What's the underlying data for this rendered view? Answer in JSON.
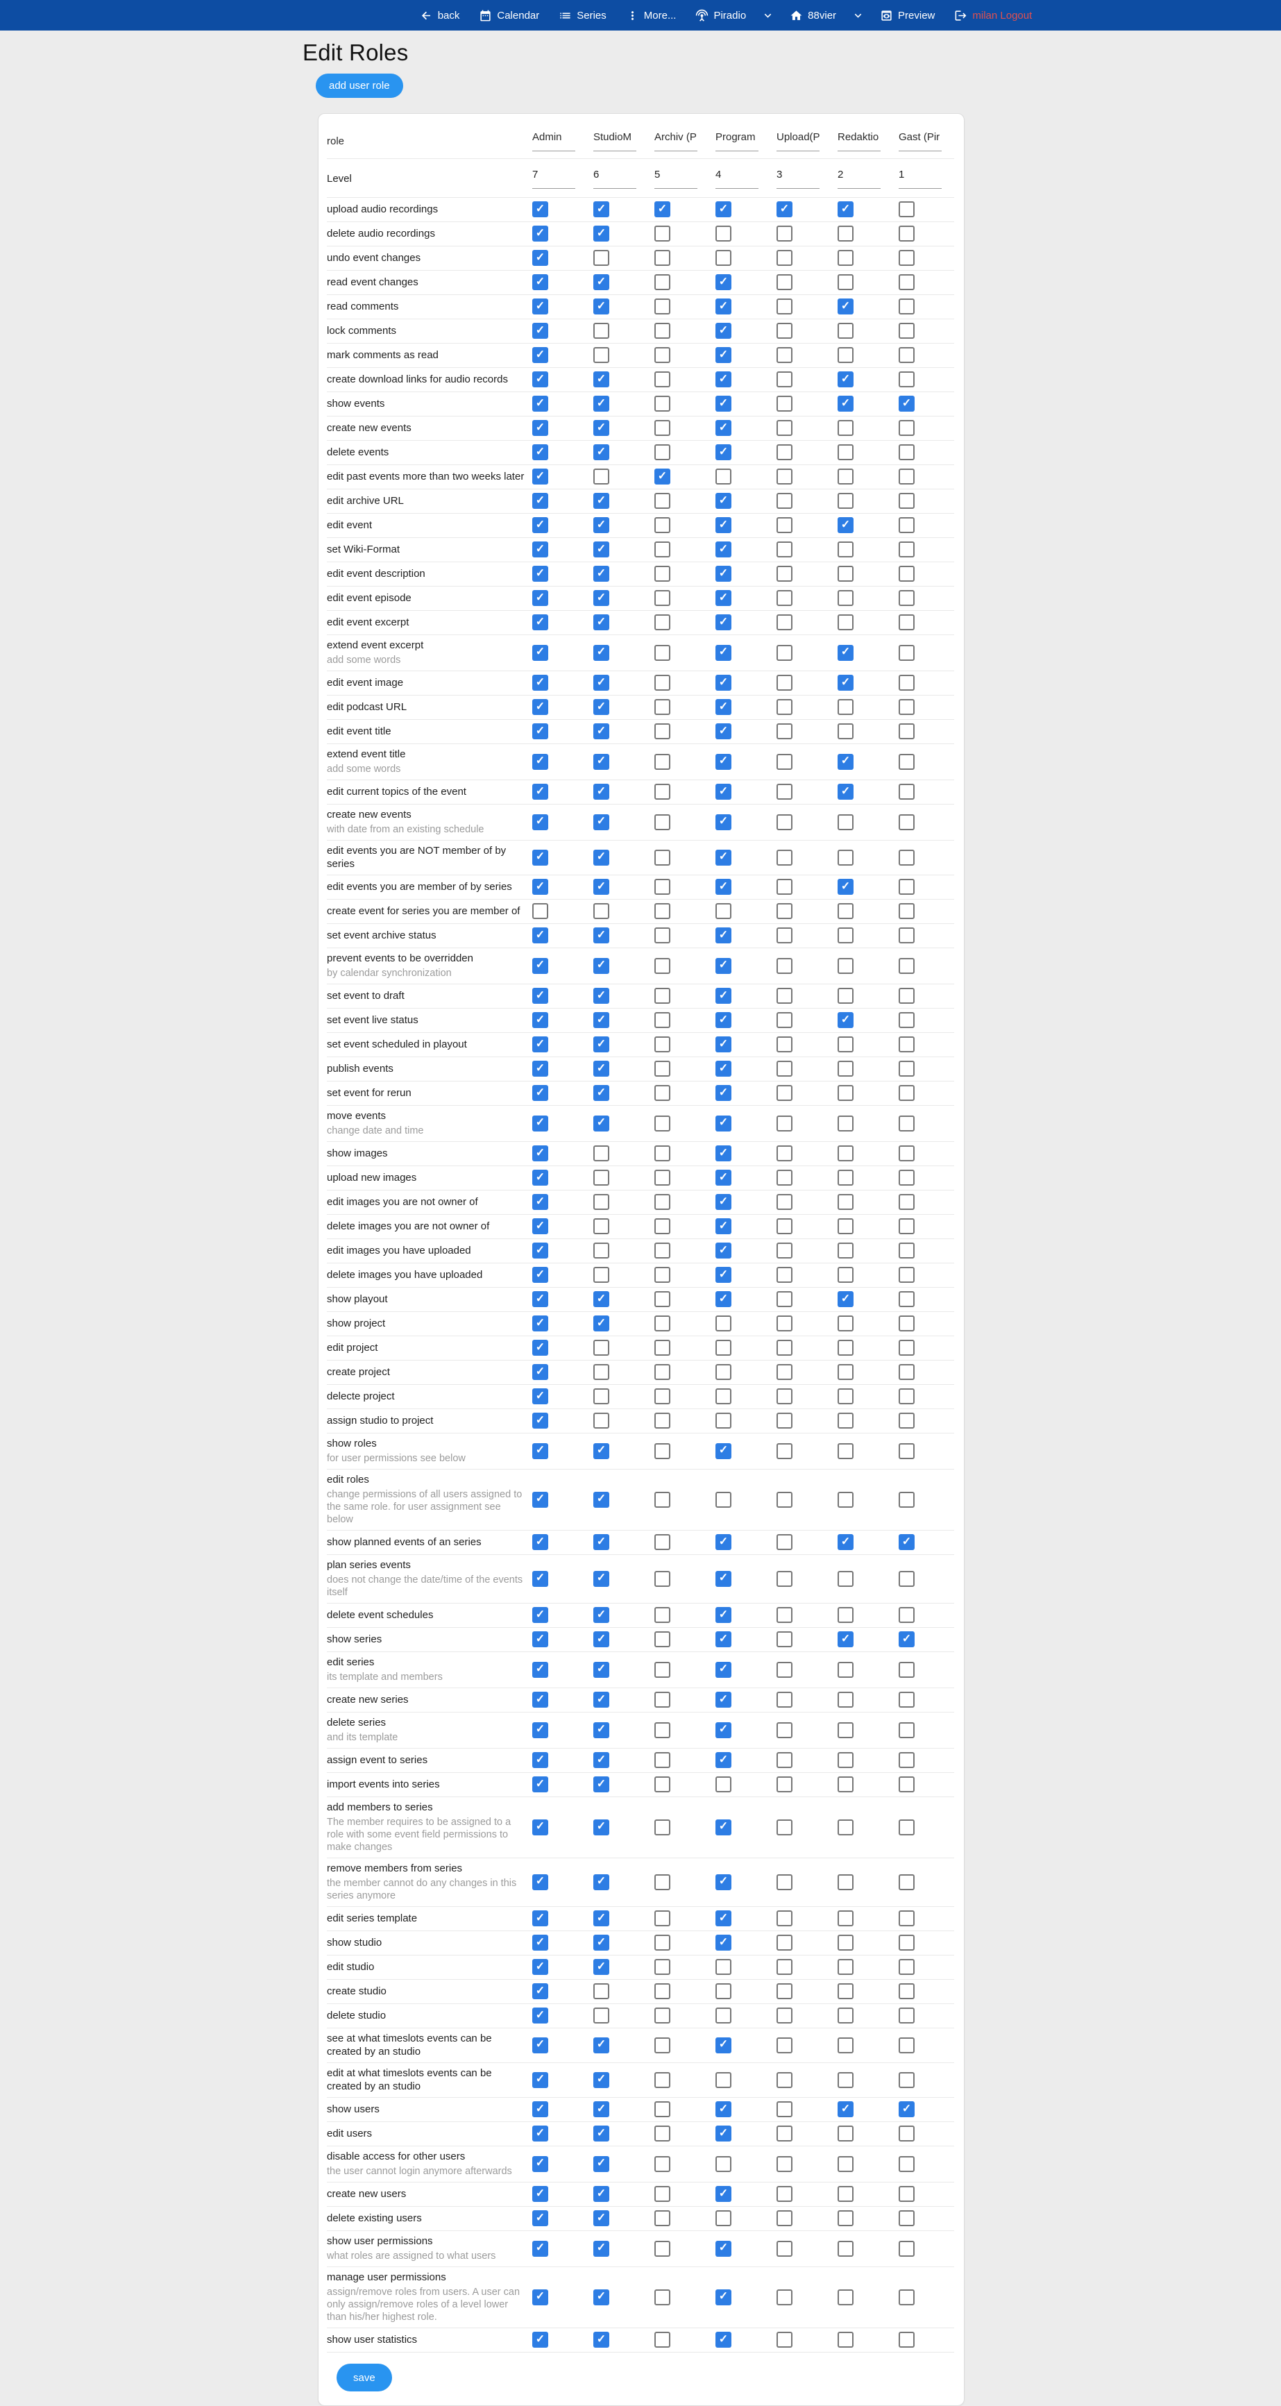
{
  "colors": {
    "navbar_bg": "#0d4da3",
    "accent_button": "#2994f0",
    "checkbox_checked": "#2d7de4",
    "logout_text": "#e05050",
    "page_bg": "#ececec",
    "card_border": "#dcdcdc",
    "row_divider": "#e9e9e9",
    "sublabel_text": "#9b9b9b",
    "unchecked_border": "#767676"
  },
  "navbar": {
    "items": [
      {
        "icon": "back-arrow-icon",
        "label": "back"
      },
      {
        "icon": "calendar-icon",
        "label": "Calendar"
      },
      {
        "icon": "series-list-icon",
        "label": "Series"
      },
      {
        "icon": "more-vert-icon",
        "label": "More..."
      },
      {
        "icon": "antenna-icon",
        "label": "Piradio"
      },
      {
        "icon": "chevron-down-icon",
        "label": ""
      },
      {
        "icon": "home-icon",
        "label": "88vier"
      },
      {
        "icon": "chevron-down-icon",
        "label": ""
      },
      {
        "icon": "preview-icon",
        "label": "Preview"
      },
      {
        "icon": "logout-icon",
        "label": "milan Logout",
        "style": "logout"
      }
    ]
  },
  "page": {
    "title": "Edit Roles",
    "add_button_label": "add user role",
    "save_button_label": "save"
  },
  "table": {
    "role_header": "role",
    "level_label": "Level",
    "columns": [
      {
        "name": "Admin",
        "level": "7"
      },
      {
        "name": "StudioM",
        "level": "6"
      },
      {
        "name": "Archiv (P",
        "level": "5"
      },
      {
        "name": "Program",
        "level": "4"
      },
      {
        "name": "Upload(P",
        "level": "3"
      },
      {
        "name": "Redaktio",
        "level": "2"
      },
      {
        "name": "Gast (Pir",
        "level": "1"
      }
    ],
    "rows": [
      {
        "label": "upload audio recordings",
        "checks": [
          1,
          1,
          1,
          1,
          1,
          1,
          0
        ]
      },
      {
        "label": "delete audio recordings",
        "checks": [
          1,
          1,
          0,
          0,
          0,
          0,
          0
        ]
      },
      {
        "label": "undo event changes",
        "checks": [
          1,
          0,
          0,
          0,
          0,
          0,
          0
        ]
      },
      {
        "label": "read event changes",
        "checks": [
          1,
          1,
          0,
          1,
          0,
          0,
          0
        ]
      },
      {
        "label": "read comments",
        "checks": [
          1,
          1,
          0,
          1,
          0,
          1,
          0
        ]
      },
      {
        "label": "lock comments",
        "checks": [
          1,
          0,
          0,
          1,
          0,
          0,
          0
        ]
      },
      {
        "label": "mark comments as read",
        "checks": [
          1,
          0,
          0,
          1,
          0,
          0,
          0
        ]
      },
      {
        "label": "create download links for audio records",
        "checks": [
          1,
          1,
          0,
          1,
          0,
          1,
          0
        ]
      },
      {
        "label": "show events",
        "checks": [
          1,
          1,
          0,
          1,
          0,
          1,
          1
        ]
      },
      {
        "label": "create new events",
        "checks": [
          1,
          1,
          0,
          1,
          0,
          0,
          0
        ]
      },
      {
        "label": "delete events",
        "checks": [
          1,
          1,
          0,
          1,
          0,
          0,
          0
        ]
      },
      {
        "label": "edit past events more than two weeks later",
        "checks": [
          1,
          0,
          1,
          0,
          0,
          0,
          0
        ]
      },
      {
        "label": "edit archive URL",
        "checks": [
          1,
          1,
          0,
          1,
          0,
          0,
          0
        ]
      },
      {
        "label": "edit event",
        "checks": [
          1,
          1,
          0,
          1,
          0,
          1,
          0
        ]
      },
      {
        "label": "set Wiki-Format",
        "checks": [
          1,
          1,
          0,
          1,
          0,
          0,
          0
        ]
      },
      {
        "label": "edit event description",
        "checks": [
          1,
          1,
          0,
          1,
          0,
          0,
          0
        ]
      },
      {
        "label": "edit event episode",
        "checks": [
          1,
          1,
          0,
          1,
          0,
          0,
          0
        ]
      },
      {
        "label": "edit event excerpt",
        "checks": [
          1,
          1,
          0,
          1,
          0,
          0,
          0
        ]
      },
      {
        "label": "extend event excerpt",
        "sub": "add some words",
        "checks": [
          1,
          1,
          0,
          1,
          0,
          1,
          0
        ]
      },
      {
        "label": "edit event image",
        "checks": [
          1,
          1,
          0,
          1,
          0,
          1,
          0
        ]
      },
      {
        "label": "edit podcast URL",
        "checks": [
          1,
          1,
          0,
          1,
          0,
          0,
          0
        ]
      },
      {
        "label": "edit event title",
        "checks": [
          1,
          1,
          0,
          1,
          0,
          0,
          0
        ]
      },
      {
        "label": "extend event title",
        "sub": "add some words",
        "checks": [
          1,
          1,
          0,
          1,
          0,
          1,
          0
        ]
      },
      {
        "label": "edit current topics of the event",
        "checks": [
          1,
          1,
          0,
          1,
          0,
          1,
          0
        ]
      },
      {
        "label": "create new events",
        "sub": "with date from an existing schedule",
        "checks": [
          1,
          1,
          0,
          1,
          0,
          0,
          0
        ]
      },
      {
        "label": "edit events you are NOT member of by series",
        "checks": [
          1,
          1,
          0,
          1,
          0,
          0,
          0
        ]
      },
      {
        "label": "edit events you are member of by series",
        "checks": [
          1,
          1,
          0,
          1,
          0,
          1,
          0
        ]
      },
      {
        "label": "create event for series you are member of",
        "checks": [
          0,
          0,
          0,
          0,
          0,
          0,
          0
        ]
      },
      {
        "label": "set event archive status",
        "checks": [
          1,
          1,
          0,
          1,
          0,
          0,
          0
        ]
      },
      {
        "label": "prevent events to be overridden",
        "sub": "by calendar synchronization",
        "checks": [
          1,
          1,
          0,
          1,
          0,
          0,
          0
        ]
      },
      {
        "label": "set event to draft",
        "checks": [
          1,
          1,
          0,
          1,
          0,
          0,
          0
        ]
      },
      {
        "label": "set event live status",
        "checks": [
          1,
          1,
          0,
          1,
          0,
          1,
          0
        ]
      },
      {
        "label": "set event scheduled in playout",
        "checks": [
          1,
          1,
          0,
          1,
          0,
          0,
          0
        ]
      },
      {
        "label": "publish events",
        "checks": [
          1,
          1,
          0,
          1,
          0,
          0,
          0
        ]
      },
      {
        "label": "set event for rerun",
        "checks": [
          1,
          1,
          0,
          1,
          0,
          0,
          0
        ]
      },
      {
        "label": "move events",
        "sub": "change date and time",
        "checks": [
          1,
          1,
          0,
          1,
          0,
          0,
          0
        ]
      },
      {
        "label": "show images",
        "checks": [
          1,
          0,
          0,
          1,
          0,
          0,
          0
        ]
      },
      {
        "label": "upload new images",
        "checks": [
          1,
          0,
          0,
          1,
          0,
          0,
          0
        ]
      },
      {
        "label": "edit images you are not owner of",
        "checks": [
          1,
          0,
          0,
          1,
          0,
          0,
          0
        ]
      },
      {
        "label": "delete images you are not owner of",
        "checks": [
          1,
          0,
          0,
          1,
          0,
          0,
          0
        ]
      },
      {
        "label": "edit images you have uploaded",
        "checks": [
          1,
          0,
          0,
          1,
          0,
          0,
          0
        ]
      },
      {
        "label": "delete images you have uploaded",
        "checks": [
          1,
          0,
          0,
          1,
          0,
          0,
          0
        ]
      },
      {
        "label": "show playout",
        "checks": [
          1,
          1,
          0,
          1,
          0,
          1,
          0
        ]
      },
      {
        "label": "show project",
        "checks": [
          1,
          1,
          0,
          0,
          0,
          0,
          0
        ]
      },
      {
        "label": "edit project",
        "checks": [
          1,
          0,
          0,
          0,
          0,
          0,
          0
        ]
      },
      {
        "label": "create project",
        "checks": [
          1,
          0,
          0,
          0,
          0,
          0,
          0
        ]
      },
      {
        "label": "delecte project",
        "checks": [
          1,
          0,
          0,
          0,
          0,
          0,
          0
        ]
      },
      {
        "label": "assign studio to project",
        "checks": [
          1,
          0,
          0,
          0,
          0,
          0,
          0
        ]
      },
      {
        "label": "show roles",
        "sub": "for user permissions see below",
        "checks": [
          1,
          1,
          0,
          1,
          0,
          0,
          0
        ]
      },
      {
        "label": "edit roles",
        "sub": "change permissions of all users assigned to the same role. for user assignment see below",
        "checks": [
          1,
          1,
          0,
          0,
          0,
          0,
          0
        ]
      },
      {
        "label": "show planned events of an series",
        "checks": [
          1,
          1,
          0,
          1,
          0,
          1,
          1
        ]
      },
      {
        "label": "plan series events",
        "sub": "does not change the date/time of the events itself",
        "checks": [
          1,
          1,
          0,
          1,
          0,
          0,
          0
        ]
      },
      {
        "label": "delete event schedules",
        "checks": [
          1,
          1,
          0,
          1,
          0,
          0,
          0
        ]
      },
      {
        "label": "show series",
        "checks": [
          1,
          1,
          0,
          1,
          0,
          1,
          1
        ]
      },
      {
        "label": "edit series",
        "sub": "its template and members",
        "checks": [
          1,
          1,
          0,
          1,
          0,
          0,
          0
        ]
      },
      {
        "label": "create new series",
        "checks": [
          1,
          1,
          0,
          1,
          0,
          0,
          0
        ]
      },
      {
        "label": "delete series",
        "sub": "and its template",
        "checks": [
          1,
          1,
          0,
          1,
          0,
          0,
          0
        ]
      },
      {
        "label": "assign event to series",
        "checks": [
          1,
          1,
          0,
          1,
          0,
          0,
          0
        ]
      },
      {
        "label": "import events into series",
        "checks": [
          1,
          1,
          0,
          0,
          0,
          0,
          0
        ]
      },
      {
        "label": "add members to series",
        "sub": "The member requires to be assigned to a role with some event field permissions to make changes",
        "checks": [
          1,
          1,
          0,
          1,
          0,
          0,
          0
        ]
      },
      {
        "label": "remove members from series",
        "sub": "the member cannot do any changes in this series anymore",
        "checks": [
          1,
          1,
          0,
          1,
          0,
          0,
          0
        ]
      },
      {
        "label": "edit series template",
        "checks": [
          1,
          1,
          0,
          1,
          0,
          0,
          0
        ]
      },
      {
        "label": "show studio",
        "checks": [
          1,
          1,
          0,
          1,
          0,
          0,
          0
        ]
      },
      {
        "label": "edit studio",
        "checks": [
          1,
          1,
          0,
          0,
          0,
          0,
          0
        ]
      },
      {
        "label": "create studio",
        "checks": [
          1,
          0,
          0,
          0,
          0,
          0,
          0
        ]
      },
      {
        "label": "delete studio",
        "checks": [
          1,
          0,
          0,
          0,
          0,
          0,
          0
        ]
      },
      {
        "label": "see at what timeslots events can be created by an studio",
        "checks": [
          1,
          1,
          0,
          1,
          0,
          0,
          0
        ]
      },
      {
        "label": "edit at what timeslots events can be created by an studio",
        "checks": [
          1,
          1,
          0,
          0,
          0,
          0,
          0
        ]
      },
      {
        "label": "show users",
        "checks": [
          1,
          1,
          0,
          1,
          0,
          1,
          1
        ]
      },
      {
        "label": "edit users",
        "checks": [
          1,
          1,
          0,
          1,
          0,
          0,
          0
        ]
      },
      {
        "label": "disable access for other users",
        "sub": "the user cannot login anymore afterwards",
        "checks": [
          1,
          1,
          0,
          0,
          0,
          0,
          0
        ]
      },
      {
        "label": "create new users",
        "checks": [
          1,
          1,
          0,
          1,
          0,
          0,
          0
        ]
      },
      {
        "label": "delete existing users",
        "checks": [
          1,
          1,
          0,
          0,
          0,
          0,
          0
        ]
      },
      {
        "label": "show user permissions",
        "sub": "what roles are assigned to what users",
        "checks": [
          1,
          1,
          0,
          1,
          0,
          0,
          0
        ]
      },
      {
        "label": "manage user permissions",
        "sub": "assign/remove roles from users. A user can only assign/remove roles of a level lower than his/her highest role.",
        "checks": [
          1,
          1,
          0,
          1,
          0,
          0,
          0
        ]
      },
      {
        "label": "show user statistics",
        "checks": [
          1,
          1,
          0,
          1,
          0,
          0,
          0
        ]
      }
    ]
  }
}
